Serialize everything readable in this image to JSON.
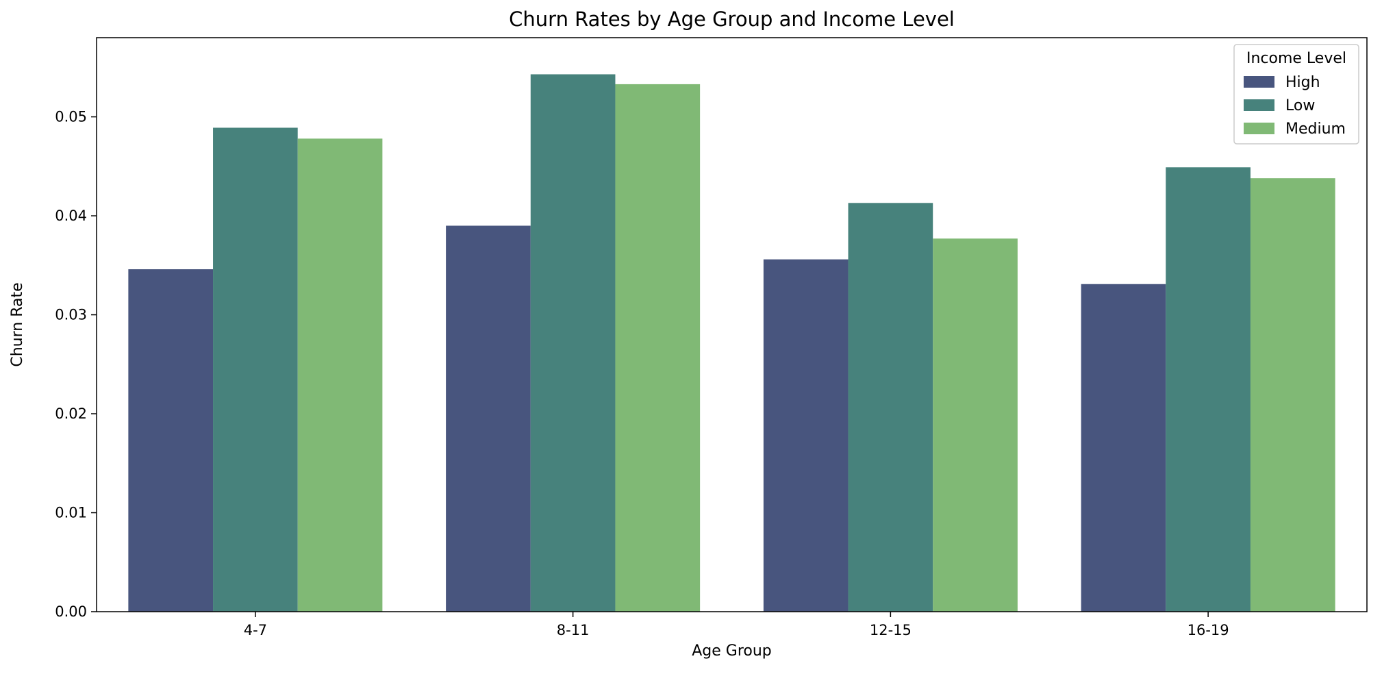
{
  "chart_data": {
    "type": "bar",
    "title": "Churn Rates by Age Group and Income Level",
    "xlabel": "Age Group",
    "ylabel": "Churn Rate",
    "categories": [
      "4-7",
      "8-11",
      "12-15",
      "16-19"
    ],
    "series": [
      {
        "name": "High",
        "color": "#48557e",
        "values": [
          0.0346,
          0.039,
          0.0356,
          0.0331
        ]
      },
      {
        "name": "Low",
        "color": "#47827c",
        "values": [
          0.0489,
          0.0543,
          0.0413,
          0.0449
        ]
      },
      {
        "name": "Medium",
        "color": "#80b975",
        "values": [
          0.0478,
          0.0533,
          0.0377,
          0.0438
        ]
      }
    ],
    "ylim": [
      0,
      0.058
    ],
    "yticks": [
      "0.00",
      "0.01",
      "0.02",
      "0.03",
      "0.04",
      "0.05"
    ],
    "ytick_values": [
      0,
      0.01,
      0.02,
      0.03,
      0.04,
      0.05
    ],
    "legend": {
      "title": "Income Level",
      "position": "top-right"
    },
    "grid": false
  }
}
